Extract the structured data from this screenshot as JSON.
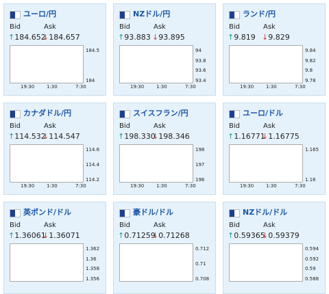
{
  "labels": {
    "bid": "Bid",
    "ask": "Ask"
  },
  "tiles": [
    {
      "title": "ユーロ/円",
      "bid_arrow": "↑",
      "bid": "184.652",
      "ask_arrow": "↓",
      "ask": "184.657",
      "yticks": [
        "184.5",
        "184"
      ],
      "xticks": [
        "19:30",
        "1:30",
        "7:30"
      ]
    },
    {
      "title": "NZドル/円",
      "bid_arrow": "↑",
      "bid": "93.883",
      "ask_arrow": "↓",
      "ask": "93.895",
      "yticks": [
        "94",
        "93.8",
        "93.6",
        "93.4"
      ],
      "xticks": [
        "19:30",
        "1:30",
        "7:30"
      ]
    },
    {
      "title": "ランド/円",
      "bid_arrow": "↑",
      "bid": "9.819",
      "ask_arrow": "↓",
      "ask": "9.829",
      "yticks": [
        "9.84",
        "9.82",
        "9.8",
        "9.78"
      ],
      "xticks": [
        "19:30",
        "1:30",
        "7:30"
      ]
    },
    {
      "title": "カナダドル/円",
      "bid_arrow": "↑",
      "bid": "114.532",
      "ask_arrow": "↓",
      "ask": "114.547",
      "yticks": [
        "114.6",
        "114.4",
        "114.2"
      ],
      "xticks": [
        "19:30",
        "1:30",
        "7:30"
      ]
    },
    {
      "title": "スイスフラン/円",
      "bid_arrow": "↑",
      "bid": "198.330",
      "ask_arrow": "↓",
      "ask": "198.346",
      "yticks": [
        "198",
        "197",
        "196"
      ],
      "xticks": [
        "19:30",
        "1:30",
        "7:30"
      ]
    },
    {
      "title": "ユーロ/ドル",
      "bid_arrow": "↑",
      "bid": "1.16771",
      "ask_arrow": "↓",
      "ask": "1.16775",
      "yticks": [
        "1.165",
        "1.16"
      ],
      "xticks": [
        "19:30",
        "1:30",
        "7:30"
      ]
    },
    {
      "title": "英ポンド/ドル",
      "bid_arrow": "↑",
      "bid": "1.36061",
      "ask_arrow": "↓",
      "ask": "1.36071",
      "yticks": [
        "1.362",
        "1.36",
        "1.358",
        "1.356"
      ],
      "xticks": []
    },
    {
      "title": "豪ドル/ドル",
      "bid_arrow": "↑",
      "bid": "0.71259",
      "ask_arrow": "↓",
      "ask": "0.71268",
      "yticks": [
        "0.712",
        "0.71",
        "0.708"
      ],
      "xticks": []
    },
    {
      "title": "NZドル/ドル",
      "bid_arrow": "↑",
      "bid": "0.59365",
      "ask_arrow": "↓",
      "ask": "0.59379",
      "yticks": [
        "0.594",
        "0.592",
        "0.59",
        "0.588"
      ],
      "xticks": []
    }
  ]
}
